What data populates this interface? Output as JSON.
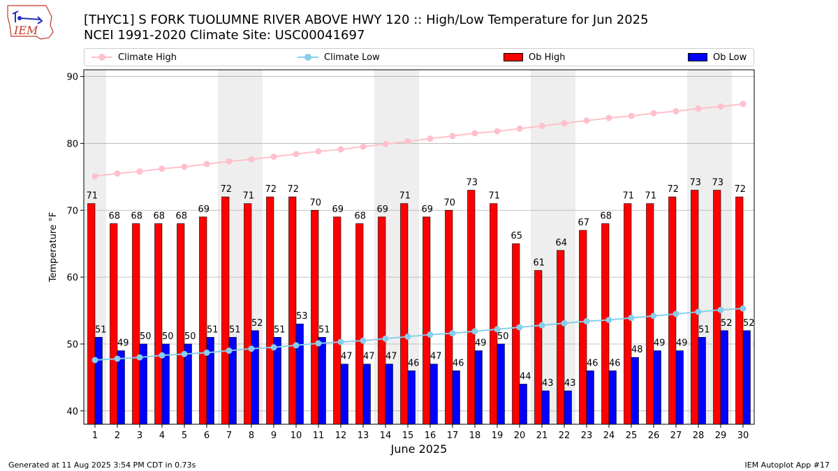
{
  "logo": {
    "text": "IEM",
    "colors": {
      "outline": "#c0392b",
      "mark": "#1f2fbf"
    }
  },
  "header": {
    "title_line1": "[THYC1] S FORK TUOLUMNE RIVER ABOVE HWY 120 :: High/Low Temperature for Jun 2025",
    "title_line2": "NCEI 1991-2020 Climate Site: USC00041697"
  },
  "legend": {
    "climate_high": "Climate High",
    "climate_low": "Climate Low",
    "ob_high": "Ob High",
    "ob_low": "Ob Low"
  },
  "colors": {
    "climate_high": "#ffc0cb",
    "climate_low": "#87ceeb",
    "ob_high": "#ff0000",
    "ob_low": "#0000ff",
    "weekend_shade": "#eeeeee",
    "grid": "#b0b0b0"
  },
  "chart_data": {
    "type": "bar",
    "title": "[THYC1] S FORK TUOLUMNE RIVER ABOVE HWY 120 :: High/Low Temperature for Jun 2025",
    "subtitle": "NCEI 1991-2020 Climate Site: USC00041697",
    "xlabel": "June 2025",
    "ylabel": "Temperature °F",
    "ylim": [
      38,
      91
    ],
    "yticks": [
      40,
      50,
      60,
      70,
      80,
      90
    ],
    "grid": true,
    "legend_position": "top",
    "categories": [
      "1",
      "2",
      "3",
      "4",
      "5",
      "6",
      "7",
      "8",
      "9",
      "10",
      "11",
      "12",
      "13",
      "14",
      "15",
      "16",
      "17",
      "18",
      "19",
      "20",
      "21",
      "22",
      "23",
      "24",
      "25",
      "26",
      "27",
      "28",
      "29",
      "30"
    ],
    "shaded_days": [
      1,
      7,
      8,
      14,
      15,
      21,
      22,
      28,
      29
    ],
    "series": [
      {
        "name": "Ob High",
        "kind": "bar",
        "values": [
          71,
          68,
          68,
          68,
          68,
          69,
          72,
          71,
          72,
          72,
          70,
          69,
          68,
          69,
          71,
          69,
          70,
          73,
          71,
          65,
          61,
          64,
          67,
          68,
          71,
          71,
          72,
          73,
          73,
          72
        ]
      },
      {
        "name": "Ob Low",
        "kind": "bar",
        "values": [
          51,
          49,
          50,
          50,
          50,
          51,
          51,
          52,
          51,
          53,
          51,
          47,
          47,
          47,
          46,
          47,
          46,
          49,
          50,
          44,
          43,
          43,
          46,
          46,
          48,
          49,
          49,
          51,
          52,
          52
        ]
      },
      {
        "name": "Climate High",
        "kind": "line",
        "values": [
          75.1,
          75.5,
          75.8,
          76.2,
          76.5,
          76.9,
          77.3,
          77.6,
          78.0,
          78.4,
          78.8,
          79.1,
          79.5,
          79.9,
          80.3,
          80.7,
          81.1,
          81.5,
          81.8,
          82.2,
          82.6,
          83.0,
          83.4,
          83.8,
          84.1,
          84.5,
          84.8,
          85.2,
          85.5,
          85.9
        ]
      },
      {
        "name": "Climate Low",
        "kind": "line",
        "values": [
          47.6,
          47.8,
          48.0,
          48.3,
          48.5,
          48.7,
          49.0,
          49.3,
          49.5,
          49.8,
          50.1,
          50.3,
          50.5,
          50.8,
          51.1,
          51.4,
          51.6,
          51.9,
          52.2,
          52.5,
          52.8,
          53.1,
          53.4,
          53.6,
          53.9,
          54.2,
          54.5,
          54.8,
          55.1,
          55.3
        ]
      }
    ]
  },
  "footer": {
    "generated": "Generated at 11 Aug 2025 3:54 PM CDT in 0.73s",
    "app": "IEM Autoplot App #17"
  }
}
